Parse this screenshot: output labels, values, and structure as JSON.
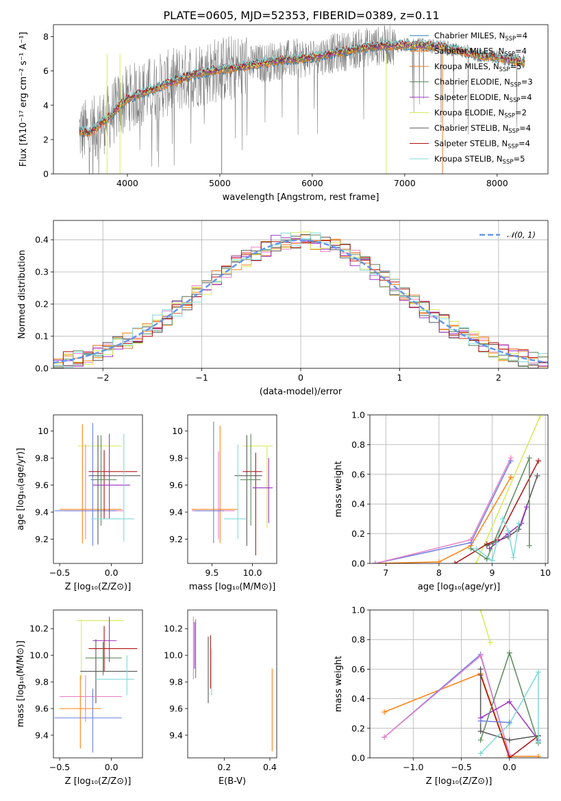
{
  "figure_title": "PLATE=0605, MJD=52353, FIBERID=0389, z=0.11",
  "colors": {
    "chabrier_miles": "#1f77b4",
    "salpeter_miles": "#ff7f0e",
    "kroupa_miles": "#e07b2c",
    "chabrier_elodie": "#5a8a5a",
    "salpeter_elodie": "#9b30c0",
    "kroupa_elodie": "#d7ea56",
    "chabrier_stelib": "#555555",
    "salpeter_stelib": "#b01010",
    "kroupa_stelib": "#7fd8d8",
    "data": "#808080",
    "gauss": "#6495ed",
    "pink": "#e880c8",
    "blue": "#6b7fe0"
  },
  "chart_data": [
    {
      "type": "line",
      "title": "PLATE=0605, MJD=52353, FIBERID=0389, z=0.11",
      "xlabel": "wavelength [Angstrom, rest frame]",
      "ylabel": "Flux [fλ10⁻¹⁷ erg cm⁻² s⁻¹ A⁻¹]",
      "xlim": [
        3200,
        8550
      ],
      "ylim": [
        0,
        8.7
      ],
      "xticks": [
        4000,
        5000,
        6000,
        7000,
        8000
      ],
      "yticks": [
        0,
        2,
        4,
        6,
        8
      ],
      "legend_placement": "right",
      "legend": [
        {
          "label": "Chabrier MILES, N",
          "sub": "SSP",
          "val": "=4"
        },
        {
          "label": "Salpeter MILES, N",
          "sub": "SSP",
          "val": "=4"
        },
        {
          "label": "Kroupa MILES, N",
          "sub": "SSP",
          "val": "=5"
        },
        {
          "label": "Chabrier ELODIE, N",
          "sub": "SSP",
          "val": "=3"
        },
        {
          "label": "Salpeter ELODIE, N",
          "sub": "SSP",
          "val": "=4"
        },
        {
          "label": "Kroupa ELODIE, N",
          "sub": "SSP",
          "val": "=2"
        },
        {
          "label": "Chabrier STELIB, N",
          "sub": "SSP",
          "val": "=4"
        },
        {
          "label": "Salpeter STELIB, N",
          "sub": "SSP",
          "val": "=4"
        },
        {
          "label": "Kroupa STELIB, N",
          "sub": "SSP",
          "val": "=5"
        }
      ],
      "continuum": {
        "x": [
          3480,
          3600,
          3700,
          3800,
          3900,
          4000,
          4200,
          4400,
          4600,
          4800,
          5000,
          5200,
          5400,
          5600,
          5800,
          6000,
          6200,
          6400,
          6600,
          6800,
          7000,
          7200,
          7400,
          7600,
          7800,
          8000,
          8200,
          8300
        ],
        "y": [
          2.5,
          2.4,
          2.9,
          3.3,
          3.9,
          4.4,
          4.8,
          5.2,
          5.6,
          5.9,
          6.1,
          6.2,
          6.4,
          6.6,
          6.7,
          6.8,
          7.0,
          7.2,
          7.4,
          7.5,
          7.5,
          7.5,
          7.4,
          7.2,
          6.9,
          6.8,
          6.6,
          6.5
        ]
      }
    },
    {
      "type": "line",
      "xlabel": "(data-model)/error",
      "ylabel": "Normed distribution",
      "xlim": [
        -2.5,
        2.5
      ],
      "ylim": [
        0,
        0.46
      ],
      "xticks": [
        -2,
        -1,
        0,
        1,
        2
      ],
      "yticks": [
        0.0,
        0.1,
        0.2,
        0.3,
        0.4
      ],
      "grid": true,
      "legend_placement": "top-right",
      "legend": [
        "𝒩(0, 1)"
      ],
      "bin_width": 0.1,
      "bins_start": -2.5,
      "series_count": 9
    },
    {
      "type": "scatter",
      "xlabel": "Z [log₁₀(Z/Z⊙)]",
      "ylabel": "age  [log₁₀(age/yr)]",
      "xlim": [
        -0.56,
        0.3
      ],
      "ylim": [
        9.02,
        10.12
      ],
      "xticks": [
        -0.5,
        0.0
      ],
      "yticks": [
        9.2,
        9.4,
        9.6,
        9.8,
        10.0
      ],
      "points": [
        {
          "c": "kroupa_elodie",
          "x": -0.1,
          "y": 9.89,
          "xe": [
            -0.33,
            0.1
          ],
          "ye": [
            9.3,
            9.89
          ]
        },
        {
          "c": "salpeter_miles",
          "x": -0.28,
          "y": 9.42,
          "xe": [
            -0.5,
            0.1
          ],
          "ye": [
            9.17,
            10.05
          ]
        },
        {
          "c": "pink",
          "x": -0.25,
          "y": 9.41,
          "xe": [
            -0.45,
            0.12
          ],
          "ye": [
            9.2,
            9.9
          ]
        },
        {
          "c": "blue",
          "x": -0.18,
          "y": 9.41,
          "xe": [
            -0.55,
            0.05
          ],
          "ye": [
            9.15,
            10.06
          ]
        },
        {
          "c": "chabrier_stelib",
          "x": -0.13,
          "y": 9.67,
          "xe": [
            -0.22,
            0.28
          ],
          "ye": [
            9.16,
            9.97
          ]
        },
        {
          "c": "salpeter_stelib",
          "x": -0.07,
          "y": 9.7,
          "xe": [
            -0.22,
            0.25
          ],
          "ye": [
            9.35,
            9.86
          ]
        },
        {
          "c": "salpeter_elodie",
          "x": -0.02,
          "y": 9.6,
          "xe": [
            -0.18,
            0.18
          ],
          "ye": [
            9.35,
            9.98
          ]
        },
        {
          "c": "chabrier_elodie",
          "x": -0.1,
          "y": 9.64,
          "xe": [
            -0.2,
            0.05
          ],
          "ye": [
            9.3,
            9.97
          ]
        },
        {
          "c": "kroupa_stelib",
          "x": 0.12,
          "y": 9.35,
          "xe": [
            -0.2,
            0.22
          ],
          "ye": [
            9.18,
            9.98
          ]
        }
      ]
    },
    {
      "type": "scatter",
      "xlabel": "mass [log₁₀(M/M⊙)]",
      "xlim": [
        9.2,
        10.3
      ],
      "ylim": [
        9.02,
        10.12
      ],
      "xticks": [
        9.5,
        10.0
      ],
      "yticks": [
        9.2,
        9.4,
        9.6,
        9.8,
        10.0
      ],
      "points": [
        {
          "c": "kroupa_elodie",
          "x": 10.18,
          "y": 9.89,
          "xe": [
            9.88,
            10.25
          ],
          "ye": [
            9.28,
            9.89
          ]
        },
        {
          "c": "salpeter_miles",
          "x": 9.6,
          "y": 9.42,
          "xe": [
            9.25,
            9.82
          ],
          "ye": [
            9.17,
            10.04
          ]
        },
        {
          "c": "pink",
          "x": 9.58,
          "y": 9.41,
          "xe": [
            9.25,
            9.78
          ],
          "ye": [
            9.2,
            9.85
          ]
        },
        {
          "c": "blue",
          "x": 9.52,
          "y": 9.41,
          "xe": [
            9.28,
            9.65
          ],
          "ye": [
            9.17,
            10.07
          ]
        },
        {
          "c": "chabrier_stelib",
          "x": 9.93,
          "y": 9.67,
          "xe": [
            9.78,
            10.12
          ],
          "ye": [
            9.15,
            9.97
          ]
        },
        {
          "c": "salpeter_stelib",
          "x": 10.04,
          "y": 9.7,
          "xe": [
            9.88,
            10.12
          ],
          "ye": [
            9.08,
            9.84
          ]
        },
        {
          "c": "salpeter_elodie",
          "x": 10.2,
          "y": 9.58,
          "xe": [
            10.0,
            10.25
          ],
          "ye": [
            9.32,
            9.8
          ]
        },
        {
          "c": "chabrier_elodie",
          "x": 9.98,
          "y": 9.64,
          "xe": [
            9.85,
            10.1
          ],
          "ye": [
            9.3,
            9.98
          ]
        },
        {
          "c": "kroupa_stelib",
          "x": 9.82,
          "y": 9.35,
          "xe": [
            9.65,
            9.92
          ],
          "ye": [
            9.2,
            9.9
          ]
        }
      ]
    },
    {
      "type": "line",
      "xlabel": "age  [log₁₀(age/yr)]",
      "ylabel": "mass weight",
      "xlim": [
        6.7,
        10.05
      ],
      "ylim": [
        0,
        1
      ],
      "xticks": [
        7,
        8,
        9,
        10
      ],
      "yticks": [
        0.0,
        0.2,
        0.4,
        0.6,
        0.8,
        1.0
      ],
      "grid": true,
      "series": [
        {
          "c": "kroupa_elodie",
          "x": [
            8.7,
            9.9
          ],
          "y": [
            0.0,
            0.99
          ]
        },
        {
          "c": "salpeter_miles",
          "x": [
            6.8,
            8.0,
            8.6,
            9.35
          ],
          "y": [
            0.0,
            0.01,
            0.12,
            0.58
          ]
        },
        {
          "c": "blue",
          "x": [
            6.8,
            8.6,
            9.35
          ],
          "y": [
            0.0,
            0.14,
            0.69
          ]
        },
        {
          "c": "pink",
          "x": [
            6.8,
            8.6,
            9.35
          ],
          "y": [
            0.0,
            0.16,
            0.71
          ]
        },
        {
          "c": "salpeter_stelib",
          "x": [
            8.3,
            8.9,
            9.1,
            9.87
          ],
          "y": [
            0.0,
            0.13,
            0.16,
            0.69
          ]
        },
        {
          "c": "chabrier_stelib",
          "x": [
            8.9,
            9.3,
            9.5,
            9.85
          ],
          "y": [
            0.12,
            0.18,
            0.23,
            0.59
          ]
        },
        {
          "c": "salpeter_elodie",
          "x": [
            8.95,
            9.3,
            9.55,
            9.65
          ],
          "y": [
            0.1,
            0.2,
            0.27,
            0.38
          ]
        },
        {
          "c": "chabrier_elodie",
          "x": [
            8.6,
            8.9,
            9.7,
            9.7
          ],
          "y": [
            0.1,
            0.03,
            0.71,
            0.12
          ]
        },
        {
          "c": "kroupa_stelib",
          "x": [
            8.7,
            9.0,
            9.2,
            9.3,
            9.4,
            9.5
          ],
          "y": [
            0.1,
            0.02,
            0.3,
            0.22,
            0.04,
            0.27
          ]
        }
      ]
    },
    {
      "type": "scatter",
      "xlabel": "Z [log₁₀(Z/Z⊙)]",
      "ylabel": "mass [log₁₀(M/M⊙)]",
      "xlim": [
        -0.56,
        0.3
      ],
      "ylim": [
        9.23,
        10.34
      ],
      "xticks": [
        -0.5,
        0.0
      ],
      "yticks": [
        9.4,
        9.6,
        9.8,
        10.0,
        10.2
      ],
      "points": [
        {
          "c": "kroupa_elodie",
          "x": -0.29,
          "y": 10.26,
          "xe": [
            -0.33,
            0.12
          ],
          "ye": [
            9.82,
            10.27
          ]
        },
        {
          "c": "salpeter_elodie",
          "x": -0.02,
          "y": 10.11,
          "xe": [
            -0.18,
            0.05
          ],
          "ye": [
            9.95,
            10.29
          ]
        },
        {
          "c": "salpeter_stelib",
          "x": -0.07,
          "y": 10.05,
          "xe": [
            -0.22,
            0.25
          ],
          "ye": [
            9.88,
            10.22
          ]
        },
        {
          "c": "chabrier_elodie",
          "x": -0.08,
          "y": 9.98,
          "xe": [
            -0.25,
            0.1
          ],
          "ye": [
            9.85,
            10.1
          ]
        },
        {
          "c": "chabrier_stelib",
          "x": -0.15,
          "y": 9.88,
          "xe": [
            -0.3,
            0.25
          ],
          "ye": [
            9.64,
            10.12
          ]
        },
        {
          "c": "kroupa_stelib",
          "x": 0.15,
          "y": 9.82,
          "xe": [
            -0.15,
            0.22
          ],
          "ye": [
            9.7,
            10.0
          ]
        },
        {
          "c": "pink",
          "x": -0.25,
          "y": 9.69,
          "xe": [
            -0.5,
            0.1
          ],
          "ye": [
            9.5,
            9.85
          ]
        },
        {
          "c": "salpeter_miles",
          "x": -0.3,
          "y": 9.6,
          "xe": [
            -0.5,
            -0.1
          ],
          "ye": [
            9.3,
            9.85
          ]
        },
        {
          "c": "blue",
          "x": -0.18,
          "y": 9.53,
          "xe": [
            -0.55,
            0.1
          ],
          "ye": [
            9.27,
            9.75
          ]
        }
      ]
    },
    {
      "type": "scatter",
      "xlabel": "E(B-V)",
      "xlim": [
        0.04,
        0.43
      ],
      "ylim": [
        9.23,
        10.34
      ],
      "xticks": [
        0.2,
        0.4
      ],
      "yticks": [
        9.4,
        9.6,
        9.8,
        10.0,
        10.2
      ],
      "points": [
        {
          "c": "pink",
          "x": 0.065,
          "ye": [
            9.82,
            10.29
          ]
        },
        {
          "c": "salpeter_elodie",
          "x": 0.07,
          "ye": [
            9.9,
            10.25
          ]
        },
        {
          "c": "chabrier_elodie",
          "x": 0.075,
          "ye": [
            9.83,
            10.27
          ]
        },
        {
          "c": "chabrier_stelib",
          "x": 0.13,
          "ye": [
            9.64,
            10.14
          ]
        },
        {
          "c": "salpeter_stelib",
          "x": 0.14,
          "ye": [
            9.75,
            10.15
          ]
        },
        {
          "c": "kroupa_stelib",
          "x": 0.145,
          "ye": [
            9.7,
            10.05
          ]
        },
        {
          "c": "salpeter_miles",
          "x": 0.41,
          "ye": [
            9.28,
            9.9
          ]
        }
      ]
    },
    {
      "type": "line",
      "xlabel": "Z [log₁₀(Z/Z⊙)]",
      "ylabel": "mass weight",
      "xlim": [
        -1.45,
        0.4
      ],
      "ylim": [
        0,
        1
      ],
      "xticks": [
        -1.0,
        -0.5,
        0.0
      ],
      "yticks": [
        0.0,
        0.2,
        0.4,
        0.6,
        0.8,
        1.0
      ],
      "grid": true,
      "series": [
        {
          "c": "kroupa_elodie",
          "x": [
            -0.3,
            -0.2
          ],
          "y": [
            1.0,
            0.78
          ]
        },
        {
          "c": "salpeter_miles",
          "x": [
            -1.3,
            -0.3,
            0.0,
            0.3
          ],
          "y": [
            0.31,
            0.57,
            0.01,
            0.01
          ]
        },
        {
          "c": "blue",
          "x": [
            -1.3,
            -0.3,
            0.0
          ],
          "y": [
            0.14,
            0.7,
            0.02
          ]
        },
        {
          "c": "pink",
          "x": [
            -1.3,
            -0.3,
            0.0
          ],
          "y": [
            0.14,
            0.69,
            0.02
          ]
        },
        {
          "c": "salpeter_stelib",
          "x": [
            -0.3,
            0.0,
            0.3
          ],
          "y": [
            0.56,
            0.0,
            0.15
          ]
        },
        {
          "c": "chabrier_stelib",
          "x": [
            -0.3,
            -0.3,
            0.0,
            0.3
          ],
          "y": [
            0.6,
            0.18,
            0.12,
            0.15
          ]
        },
        {
          "c": "salpeter_elodie",
          "x": [
            -0.3,
            0.0,
            0.3
          ],
          "y": [
            0.27,
            0.38,
            0.12
          ]
        },
        {
          "c": "chabrier_elodie",
          "x": [
            -0.3,
            0.0,
            0.3
          ],
          "y": [
            0.12,
            0.71,
            0.1
          ]
        },
        {
          "c": "kroupa_stelib",
          "x": [
            -0.3,
            0.0,
            0.3,
            0.3
          ],
          "y": [
            0.03,
            0.23,
            0.58,
            0.11
          ]
        },
        {
          "c": "blue",
          "x": [
            -0.3,
            0.0
          ],
          "y": [
            0.25,
            0.24
          ]
        }
      ]
    }
  ]
}
